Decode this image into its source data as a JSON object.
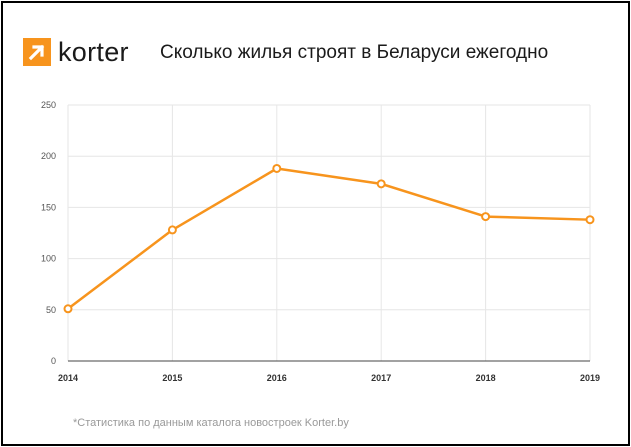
{
  "brand": {
    "name": "korter",
    "accent": "#f7941d"
  },
  "chart_data": {
    "type": "line",
    "title": "Сколько жилья строят в Беларуси ежегодно",
    "categories": [
      "2014",
      "2015",
      "2016",
      "2017",
      "2018",
      "2019"
    ],
    "series": [
      {
        "name": "",
        "values": [
          51,
          128,
          188,
          173,
          141,
          138
        ],
        "color": "#f7941d"
      }
    ],
    "ylim": [
      0,
      250
    ],
    "yticks": [
      0,
      50,
      100,
      150,
      200,
      250
    ],
    "xlabel": "",
    "ylabel": "",
    "grid": true
  },
  "footnote": "*Статистика по данным каталога новостроек Korter.by"
}
